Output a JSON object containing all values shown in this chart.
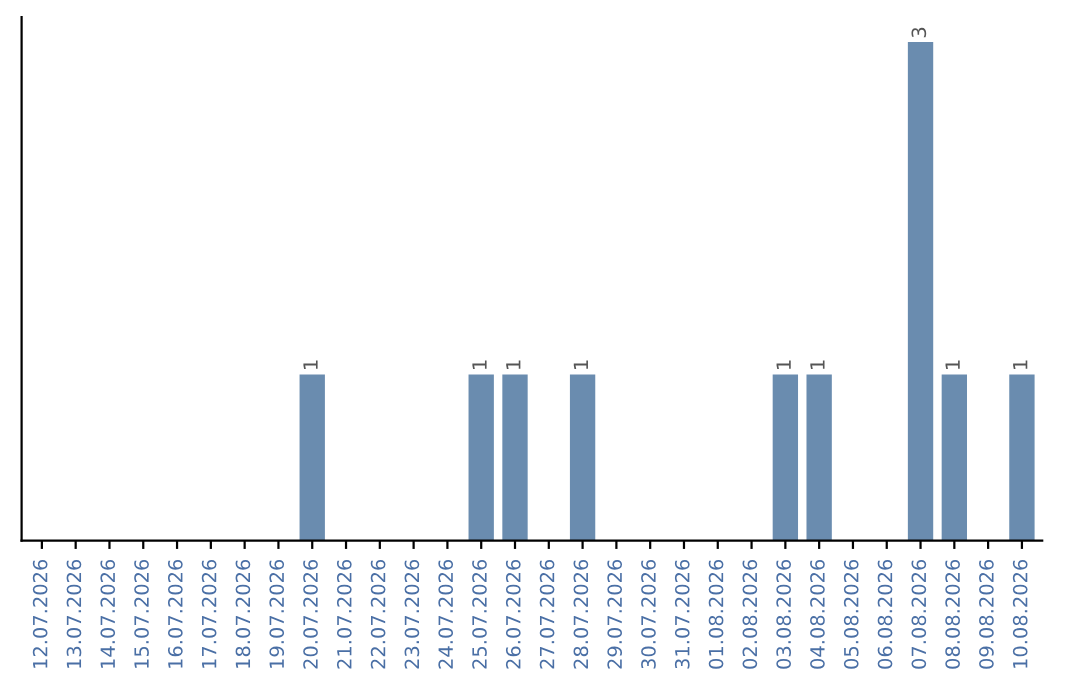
{
  "chart_data": {
    "type": "bar",
    "categories": [
      "12.07.2026",
      "13.07.2026",
      "14.07.2026",
      "15.07.2026",
      "16.07.2026",
      "17.07.2026",
      "18.07.2026",
      "19.07.2026",
      "20.07.2026",
      "21.07.2026",
      "22.07.2026",
      "23.07.2026",
      "24.07.2026",
      "25.07.2026",
      "26.07.2026",
      "27.07.2026",
      "28.07.2026",
      "29.07.2026",
      "30.07.2026",
      "31.07.2026",
      "01.08.2026",
      "02.08.2026",
      "03.08.2026",
      "04.08.2026",
      "05.08.2026",
      "06.08.2026",
      "07.08.2026",
      "08.08.2026",
      "09.08.2026",
      "10.08.2026"
    ],
    "values": [
      0,
      0,
      0,
      0,
      0,
      0,
      0,
      0,
      1,
      0,
      0,
      0,
      0,
      1,
      1,
      0,
      1,
      0,
      0,
      0,
      0,
      0,
      1,
      1,
      0,
      0,
      3,
      1,
      0,
      1
    ],
    "value_labels": [
      null,
      null,
      null,
      null,
      null,
      null,
      null,
      null,
      "1",
      null,
      null,
      null,
      null,
      "1",
      "1",
      null,
      "1",
      null,
      null,
      null,
      null,
      null,
      "1",
      "1",
      null,
      null,
      "3",
      "1",
      null,
      "1"
    ],
    "color": "#6a8caf",
    "grid": false,
    "legend": false,
    "tick_labels": "x"
  }
}
